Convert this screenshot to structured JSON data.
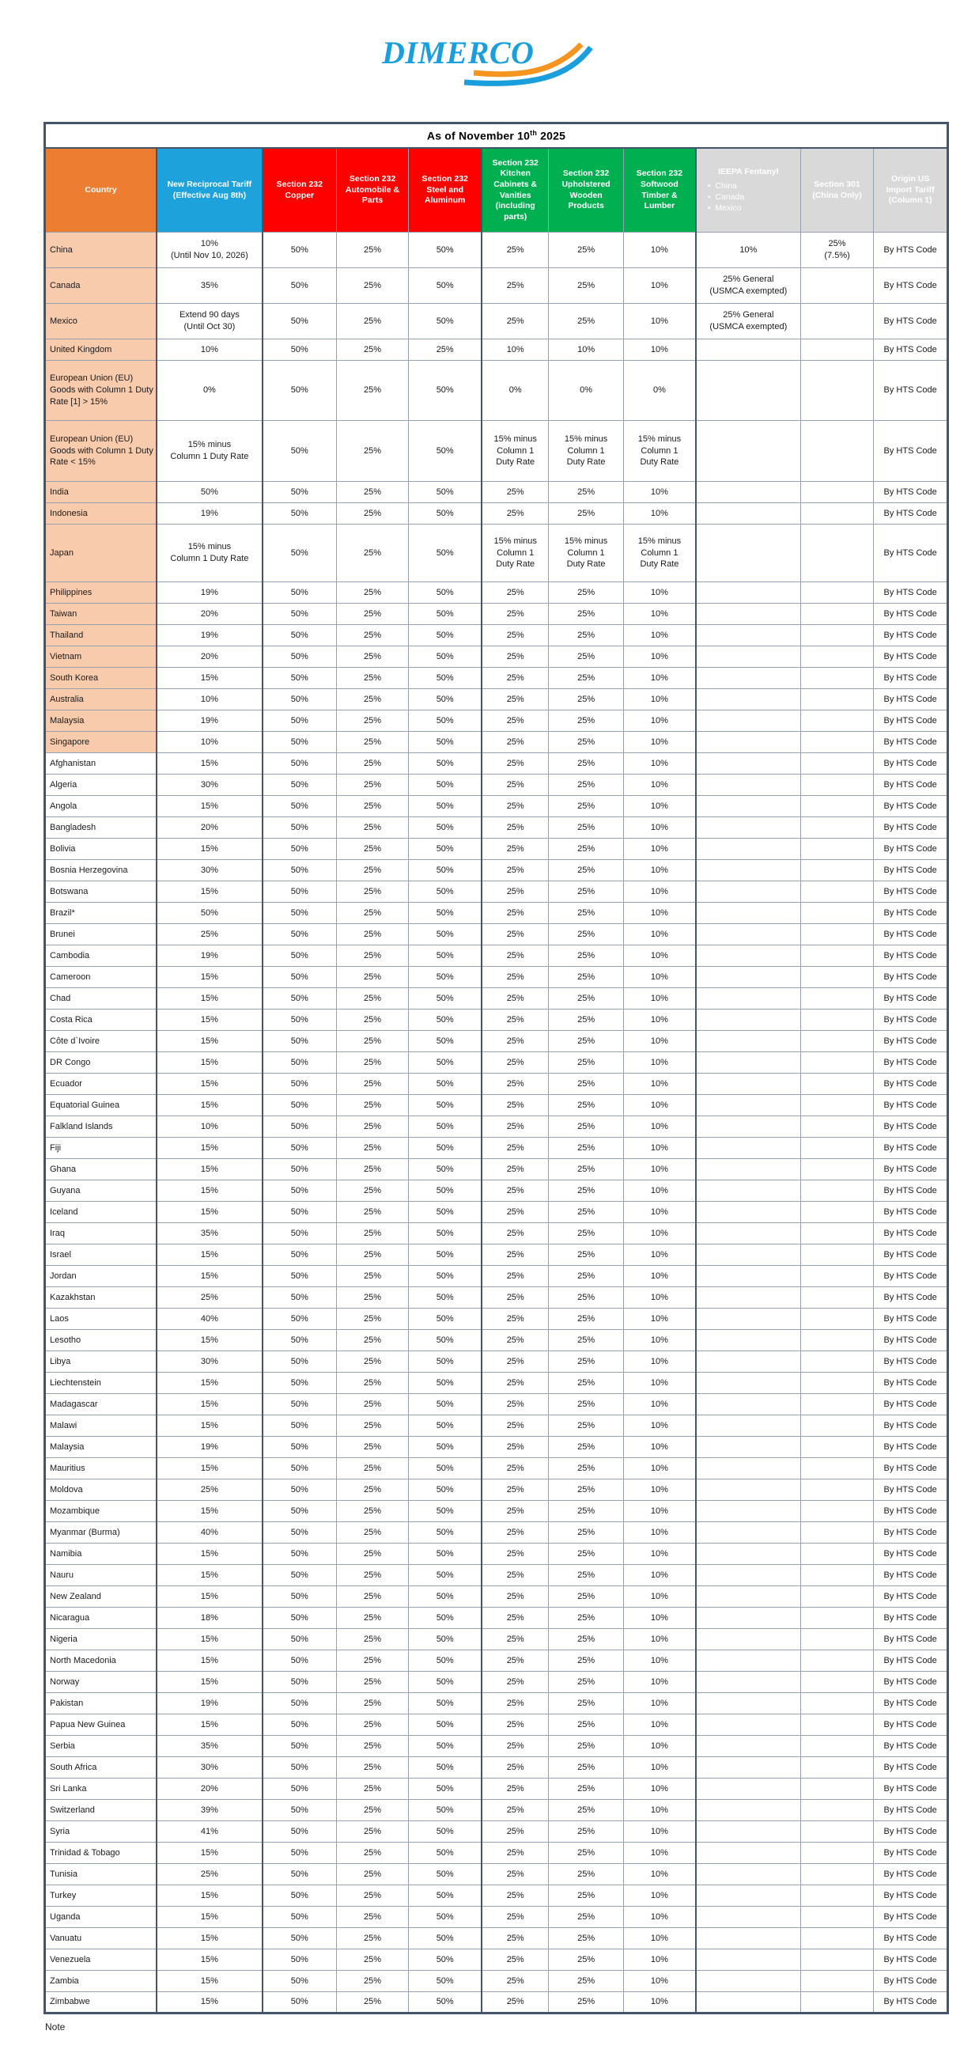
{
  "logo": {
    "text": "DIMERCO",
    "blue": "#1B9FDC",
    "orange": "#F5941E"
  },
  "title": {
    "prefix": "As of November 10",
    "sup": "th",
    "suffix": " 2025"
  },
  "colors": {
    "country_header": "#ED7D31",
    "reciprocal_header": "#1EA2DC",
    "section232_metal_header": "#FE0000",
    "section232_wood_header": "#00B050",
    "gray_header": "#D9D9D9",
    "country_highlight": "#F8CBAD",
    "border_dark": "#44546A"
  },
  "columns": [
    {
      "label": "Country"
    },
    {
      "label": "New Reciprocal Tariff (Effective Aug 8th)"
    },
    {
      "label": "Section 232 Copper"
    },
    {
      "label": "Section 232 Automobile & Parts"
    },
    {
      "label": "Section 232 Steel and Aluminum"
    },
    {
      "label": "Section 232 Kitchen Cabinets & Vanities (including parts)"
    },
    {
      "label": "Section 232 Upholstered Wooden Products"
    },
    {
      "label": "Section 232 Softwood Timber & Lumber"
    },
    {
      "label": "IEEPA Fentanyl",
      "bullets": [
        "China",
        "Canada",
        "Mexico"
      ]
    },
    {
      "label": "Section 301 (China Only)"
    },
    {
      "label": "Origin US Import Tariff (Column 1)"
    }
  ],
  "standard_cells": [
    "50%",
    "25%",
    "50%",
    "25%",
    "25%",
    "10%",
    "",
    "",
    "By HTS Code"
  ],
  "rows": [
    {
      "country": "China",
      "hl": true,
      "recip": "10%\n(Until Nov 10, 2026)",
      "cells": [
        "50%",
        "25%",
        "50%",
        "25%",
        "25%",
        "10%",
        "10%",
        "25%\n(7.5%)",
        "By HTS Code"
      ]
    },
    {
      "country": "Canada",
      "hl": true,
      "recip": "35%",
      "cells": [
        "50%",
        "25%",
        "50%",
        "25%",
        "25%",
        "10%",
        "25% General\n(USMCA exempted)",
        "",
        "By HTS Code"
      ]
    },
    {
      "country": "Mexico",
      "hl": true,
      "recip": "Extend 90 days\n(Until Oct 30)",
      "cells": [
        "50%",
        "25%",
        "50%",
        "25%",
        "25%",
        "10%",
        "25% General\n(USMCA exempted)",
        "",
        "By HTS Code"
      ]
    },
    {
      "country": "United Kingdom",
      "hl": true,
      "recip": "10%",
      "cells": [
        "50%",
        "25%",
        "25%",
        "10%",
        "10%",
        "10%",
        "",
        "",
        "By HTS Code"
      ]
    },
    {
      "country": "European Union (EU) Goods with Column 1 Duty Rate [1] > 15%",
      "hl": true,
      "recip": "0%",
      "cells": [
        "50%",
        "25%",
        "50%",
        "0%",
        "0%",
        "0%",
        "",
        "",
        "By HTS Code"
      ]
    },
    {
      "country": "European Union (EU) Goods with Column 1 Duty Rate < 15%",
      "hl": true,
      "recip": "15% minus\nColumn 1 Duty Rate",
      "cells": [
        "50%",
        "25%",
        "50%",
        "15% minus\nColumn 1\nDuty Rate",
        "15% minus\nColumn 1\nDuty Rate",
        "15% minus\nColumn 1\nDuty Rate",
        "",
        "",
        "By HTS Code"
      ]
    },
    {
      "country": "India",
      "hl": true,
      "recip": "50%"
    },
    {
      "country": "Indonesia",
      "hl": true,
      "recip": "19%"
    },
    {
      "country": "Japan",
      "hl": true,
      "recip": "15% minus\nColumn 1 Duty Rate",
      "cells": [
        "50%",
        "25%",
        "50%",
        "15% minus\nColumn 1\nDuty Rate",
        "15% minus\nColumn 1\nDuty Rate",
        "15% minus\nColumn 1\nDuty Rate",
        "",
        "",
        "By HTS Code"
      ]
    },
    {
      "country": "Philippines",
      "hl": true,
      "recip": "19%"
    },
    {
      "country": "Taiwan",
      "hl": true,
      "recip": "20%"
    },
    {
      "country": "Thailand",
      "hl": true,
      "recip": "19%"
    },
    {
      "country": "Vietnam",
      "hl": true,
      "recip": "20%"
    },
    {
      "country": "South Korea",
      "hl": true,
      "recip": "15%"
    },
    {
      "country": "Australia",
      "hl": true,
      "recip": "10%"
    },
    {
      "country": "Malaysia",
      "hl": true,
      "recip": "19%"
    },
    {
      "country": "Singapore",
      "hl": true,
      "recip": "10%"
    },
    {
      "country": "Afghanistan",
      "recip": "15%"
    },
    {
      "country": "Algeria",
      "recip": "30%"
    },
    {
      "country": "Angola",
      "recip": "15%"
    },
    {
      "country": "Bangladesh",
      "recip": "20%"
    },
    {
      "country": "Bolivia",
      "recip": "15%"
    },
    {
      "country": "Bosnia Herzegovina",
      "recip": "30%"
    },
    {
      "country": "Botswana",
      "recip": "15%"
    },
    {
      "country": "Brazil*",
      "recip": "50%"
    },
    {
      "country": "Brunei",
      "recip": "25%"
    },
    {
      "country": "Cambodia",
      "recip": "19%"
    },
    {
      "country": "Cameroon",
      "recip": "15%"
    },
    {
      "country": "Chad",
      "recip": "15%"
    },
    {
      "country": "Costa Rica",
      "recip": "15%"
    },
    {
      "country": "Côte d`Ivoire",
      "recip": "15%"
    },
    {
      "country": "DR Congo",
      "recip": "15%"
    },
    {
      "country": "Ecuador",
      "recip": "15%"
    },
    {
      "country": "Equatorial Guinea",
      "recip": "15%"
    },
    {
      "country": "Falkland Islands",
      "recip": "10%"
    },
    {
      "country": "Fiji",
      "recip": "15%"
    },
    {
      "country": "Ghana",
      "recip": "15%"
    },
    {
      "country": "Guyana",
      "recip": "15%"
    },
    {
      "country": "Iceland",
      "recip": "15%"
    },
    {
      "country": "Iraq",
      "recip": "35%"
    },
    {
      "country": "Israel",
      "recip": "15%"
    },
    {
      "country": "Jordan",
      "recip": "15%"
    },
    {
      "country": "Kazakhstan",
      "recip": "25%"
    },
    {
      "country": "Laos",
      "recip": "40%"
    },
    {
      "country": "Lesotho",
      "recip": "15%"
    },
    {
      "country": "Libya",
      "recip": "30%"
    },
    {
      "country": "Liechtenstein",
      "recip": "15%"
    },
    {
      "country": "Madagascar",
      "recip": "15%"
    },
    {
      "country": "Malawi",
      "recip": "15%"
    },
    {
      "country": "Malaysia",
      "recip": "19%"
    },
    {
      "country": "Mauritius",
      "recip": "15%"
    },
    {
      "country": "Moldova",
      "recip": "25%"
    },
    {
      "country": "Mozambique",
      "recip": "15%"
    },
    {
      "country": "Myanmar (Burma)",
      "recip": "40%"
    },
    {
      "country": "Namibia",
      "recip": "15%"
    },
    {
      "country": "Nauru",
      "recip": "15%"
    },
    {
      "country": "New Zealand",
      "recip": "15%"
    },
    {
      "country": "Nicaragua",
      "recip": "18%"
    },
    {
      "country": "Nigeria",
      "recip": "15%"
    },
    {
      "country": "North Macedonia",
      "recip": "15%"
    },
    {
      "country": "Norway",
      "recip": "15%"
    },
    {
      "country": "Pakistan",
      "recip": "19%"
    },
    {
      "country": "Papua New Guinea",
      "recip": "15%"
    },
    {
      "country": "Serbia",
      "recip": "35%"
    },
    {
      "country": "South Africa",
      "recip": "30%"
    },
    {
      "country": "Sri Lanka",
      "recip": "20%"
    },
    {
      "country": "Switzerland",
      "recip": "39%"
    },
    {
      "country": "Syria",
      "recip": "41%"
    },
    {
      "country": "Trinidad & Tobago",
      "recip": "15%"
    },
    {
      "country": "Tunisia",
      "recip": "25%"
    },
    {
      "country": "Turkey",
      "recip": "15%"
    },
    {
      "country": "Uganda",
      "recip": "15%"
    },
    {
      "country": "Vanuatu",
      "recip": "15%"
    },
    {
      "country": "Venezuela",
      "recip": "15%"
    },
    {
      "country": "Zambia",
      "recip": "15%"
    },
    {
      "country": "Zimbabwe",
      "recip": "15%"
    }
  ],
  "note_label": "Note"
}
